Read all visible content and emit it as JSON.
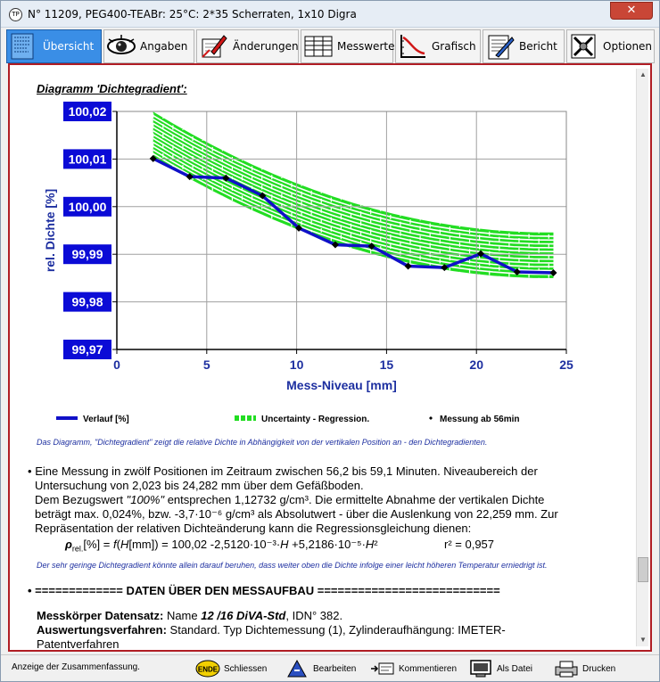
{
  "window": {
    "title": "N° 11209,  PEG400-TEABr: 25°C: 2*35 Scherraten, 1x10 Digra",
    "app_icon": "TP",
    "close_label": "✕"
  },
  "tabs": [
    {
      "label": "Übersicht",
      "icon": "overview-icon",
      "active": true
    },
    {
      "label": "Angaben",
      "icon": "eye-icon",
      "active": false
    },
    {
      "label": "Änderungen",
      "icon": "edit-icon",
      "active": false
    },
    {
      "label": "Messwerte",
      "icon": "table-icon",
      "active": false
    },
    {
      "label": "Grafisch",
      "icon": "graph-icon",
      "active": false
    },
    {
      "label": "Bericht",
      "icon": "report-icon",
      "active": false
    },
    {
      "label": "Optionen",
      "icon": "options-icon",
      "active": false
    }
  ],
  "content": {
    "diagram_heading": "Diagramm 'Dichtegradient':",
    "caption": "Das Diagramm, \"Dichtegradient\" zeigt die relative Dichte in Abhängigkeit von der vertikalen Position an - den Dichtegradienten.",
    "paragraph": {
      "bullet": "•",
      "line1": "Eine Messung in zwölf Positionen im Zeitraum zwischen 56,2 bis 59,1 Minuten. Niveaubereich der",
      "line2": "Untersuchung von 2,023 bis 24,282 mm über dem Gefäßboden.",
      "line3_pre": "Dem Bezugswert ",
      "line3_em": "\"100%\"",
      "line3_post": " entsprechen 1,12732 g/cm³. Die ermittelte Abnahme der vertikalen Dichte",
      "line4": "beträgt max. 0,024%, bzw. -3,7·10⁻⁶ g/cm³ als Absolutwert - über die Auslenkung von 22,259 mm. Zur",
      "line5": "Repräsentation der relativen Dichteänderung kann die Regressionsgleichung dienen:"
    },
    "formula": {
      "rho": "ρ",
      "sub": "rel.",
      "rest1": "[%] = ",
      "f": "f",
      "rest2": "(",
      "H": "H",
      "rest3": "[mm]) = 100,02 -2,5120·10⁻³·",
      "H2": "H",
      "rest4": " +5,2186·10⁻⁵·",
      "H3": "H",
      "sq": "²",
      "r2": "r² = 0,957"
    },
    "note": "Der sehr geringe Dichtegradient könnte allein darauf beruhen, dass weiter oben die Dichte infolge einer leicht höheren Temperatur erniedrigt ist.",
    "section_heading": "• ============= DATEN ÜBER DEN MESSAUFBAU ===========================",
    "setup": {
      "line1_label": "Messkörper Datensatz:",
      "line1_pre": " Name ",
      "line1_em": "12 /16 DiVA-Std",
      "line1_post": ", IDN° 382.",
      "line2_label": "Auswertungsverfahren:",
      "line2_text": " Standard. Typ Dichtemessung (1), Zylinderaufhängung: IMETER-",
      "line3_text": "Patentverfahren"
    }
  },
  "statusbar": {
    "status_text": "Anzeige der Zusammenfassung.",
    "buttons": [
      {
        "label": "Schliessen",
        "icon": "ende-icon",
        "icon_text": "ENDE"
      },
      {
        "label": "Bearbeiten",
        "icon": "edit-pen-icon"
      },
      {
        "label": "Kommentieren",
        "icon": "comment-icon"
      },
      {
        "label": "Als Datei",
        "icon": "file-icon"
      },
      {
        "label": "Drucken",
        "icon": "printer-icon"
      }
    ]
  },
  "colors": {
    "accent_blue": "#3a8ee6",
    "frame_red": "#b01d24",
    "series_blue": "#1010c8",
    "band_green": "#22dd22",
    "axis_label_blue": "#1d2fa0"
  },
  "chart_data": {
    "type": "line",
    "title": "",
    "xlabel": "Mess-Niveau [mm]",
    "ylabel": "rel. Dichte  [%]",
    "xlim": [
      0,
      25
    ],
    "ylim": [
      99.97,
      100.02
    ],
    "x_ticks": [
      "0",
      "5",
      "10",
      "15",
      "20",
      "25"
    ],
    "y_ticks": [
      "100,02",
      "100,01",
      "100,00",
      "99,99",
      "99,98",
      "99,97"
    ],
    "grid": true,
    "series": [
      {
        "name": "Verlauf [%]",
        "x": [
          2.02,
          4.05,
          6.07,
          8.1,
          10.12,
          12.15,
          14.17,
          16.2,
          18.22,
          20.24,
          22.26,
          24.28
        ],
        "y": [
          100.0101,
          100.0063,
          100.006,
          100.0023,
          99.9955,
          99.992,
          99.9917,
          99.9875,
          99.9872,
          99.9901,
          99.9863,
          99.9861
        ]
      }
    ],
    "uncertainty_band": {
      "name": "Uncertainty - Regression.",
      "x_range": [
        2.02,
        24.28
      ],
      "center_formula": "100,02 -2,5120·10⁻³·H +5,2186·10⁻⁵·H²",
      "half_width": 0.0048
    },
    "marker_legend": "Messung ab 56min",
    "legend_placement": "bottom"
  }
}
